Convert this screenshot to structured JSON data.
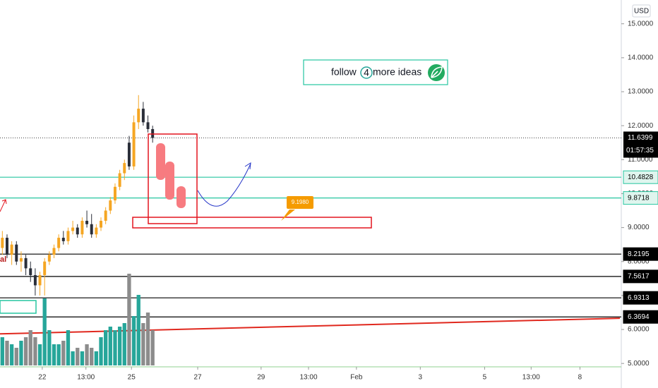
{
  "chart_data": {
    "type": "candlestick",
    "currency": "USD",
    "ylim": [
      4.9,
      15.7
    ],
    "yticks": [
      {
        "value": 5,
        "label": "5.0000"
      },
      {
        "value": 6,
        "label": "6.0000"
      },
      {
        "value": 7,
        "label": "7.0000"
      },
      {
        "value": 8,
        "label": "8.0000"
      },
      {
        "value": 9,
        "label": "9.0000"
      },
      {
        "value": 10,
        "label": "10.0000"
      },
      {
        "value": 11,
        "label": "11.0000"
      },
      {
        "value": 12,
        "label": "12.0000"
      },
      {
        "value": 13,
        "label": "13.0000"
      },
      {
        "value": 14,
        "label": "14.0000"
      },
      {
        "value": 15,
        "label": "15.0000"
      }
    ],
    "xlim": [
      0,
      132
    ],
    "xticks": [
      {
        "value": 9.0,
        "label": "22"
      },
      {
        "value": 18.3,
        "label": "13:00"
      },
      {
        "value": 28.0,
        "label": "25"
      },
      {
        "value": 42.1,
        "label": "27"
      },
      {
        "value": 55.6,
        "label": "29"
      },
      {
        "value": 65.7,
        "label": "13:00"
      },
      {
        "value": 75.9,
        "label": "Feb"
      },
      {
        "value": 89.5,
        "label": "3"
      },
      {
        "value": 103.2,
        "label": "5"
      },
      {
        "value": 113.1,
        "label": "13:00"
      },
      {
        "value": 123.5,
        "label": "8"
      }
    ],
    "up_color": "#f5a623",
    "down_color": "#2a2e39",
    "volume_up_color": "#26a69a",
    "volume_down_color": "#8c8c8c",
    "open": [
      8.4,
      8.7,
      8.2,
      8.5,
      8.0,
      8.1,
      7.8,
      7.6,
      7.3,
      7.6,
      8.0,
      8.2,
      8.4,
      8.7,
      8.6,
      8.9,
      9.0,
      8.8,
      9.2,
      9.1,
      8.8,
      9.0,
      9.2,
      9.5,
      9.8,
      10.2,
      10.6,
      11.5,
      10.8,
      12.1,
      12.5,
      12.1,
      11.9
    ],
    "high": [
      8.9,
      8.8,
      8.6,
      8.6,
      8.3,
      8.2,
      8.0,
      7.8,
      7.7,
      8.1,
      8.3,
      8.5,
      8.8,
      8.9,
      9.0,
      9.2,
      9.1,
      9.3,
      9.5,
      9.4,
      9.1,
      9.3,
      9.6,
      9.9,
      10.3,
      10.7,
      11.0,
      11.7,
      12.3,
      12.9,
      12.7,
      12.3,
      12.0
    ],
    "low": [
      8.2,
      8.1,
      7.9,
      7.9,
      7.7,
      7.6,
      7.4,
      7.0,
      7.0,
      7.0,
      7.9,
      8.1,
      8.3,
      8.5,
      8.5,
      8.8,
      8.7,
      8.7,
      9.0,
      8.7,
      8.7,
      8.9,
      9.1,
      9.4,
      9.7,
      10.1,
      10.4,
      10.7,
      10.7,
      11.9,
      12.0,
      11.8,
      11.5
    ],
    "close": [
      8.7,
      8.2,
      8.5,
      8.0,
      8.1,
      7.8,
      7.6,
      7.3,
      7.6,
      8.0,
      8.2,
      8.4,
      8.7,
      8.6,
      8.9,
      9.0,
      8.8,
      9.2,
      9.1,
      8.8,
      9.0,
      9.2,
      9.5,
      9.8,
      10.2,
      10.6,
      10.9,
      10.8,
      12.1,
      12.5,
      12.1,
      11.9,
      11.64
    ],
    "volume": [
      40,
      35,
      30,
      25,
      35,
      40,
      50,
      40,
      30,
      95,
      50,
      30,
      30,
      35,
      50,
      20,
      25,
      20,
      30,
      25,
      20,
      40,
      50,
      55,
      50,
      55,
      60,
      130,
      70,
      100,
      60,
      75,
      50
    ],
    "levels": [
      {
        "value": 10.4828,
        "color": "#26c6a0"
      },
      {
        "value": 9.8718,
        "color": "#26c6a0"
      },
      {
        "value": 8.2195,
        "color": "#000000"
      },
      {
        "value": 7.5617,
        "color": "#000000"
      },
      {
        "value": 6.9313,
        "color": "#000000"
      },
      {
        "value": 6.3694,
        "color": "#000000"
      }
    ],
    "last_price": 11.6399,
    "countdown": "01:57:35",
    "trendline": {
      "color": "#e0281e",
      "start": 5.87,
      "end": 6.33
    },
    "annotation": {
      "value": 9.198,
      "label": "9.1980"
    },
    "promo": {
      "text_before": "follow",
      "number": "4",
      "text_after": "more ideas"
    },
    "left_label": "al"
  }
}
